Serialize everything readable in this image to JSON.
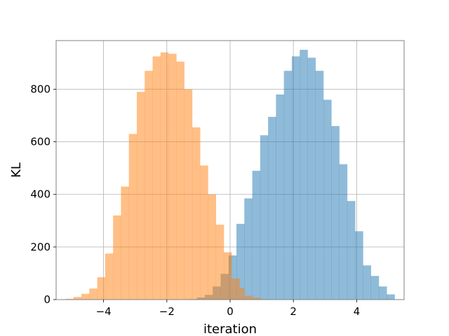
{
  "chart_data": {
    "type": "bar",
    "subtype": "overlapping-histogram",
    "title": "",
    "xlabel": "iteration",
    "ylabel": "KL",
    "xlim": [
      -5.5,
      5.5
    ],
    "ylim": [
      0,
      985
    ],
    "grid": true,
    "x_ticks": [
      -4,
      -2,
      0,
      2,
      4
    ],
    "x_tick_labels": [
      "−4",
      "−2",
      "0",
      "2",
      "4"
    ],
    "y_ticks": [
      0,
      200,
      400,
      600,
      800
    ],
    "y_tick_labels": [
      "0",
      "200",
      "400",
      "600",
      "800"
    ],
    "series": [
      {
        "color": "#1f77b4",
        "opacity": 0.5,
        "bin_edges": [
          -1.3,
          -1.05,
          -0.8,
          -0.55,
          -0.3,
          -0.05,
          0.2,
          0.45,
          0.7,
          0.95,
          1.2,
          1.45,
          1.7,
          1.95,
          2.2,
          2.45,
          2.7,
          2.95,
          3.2,
          3.45,
          3.7,
          3.95,
          4.2,
          4.45,
          4.7,
          4.95,
          5.2
        ],
        "counts": [
          2,
          8,
          18,
          50,
          98,
          168,
          288,
          385,
          490,
          625,
          695,
          780,
          870,
          925,
          950,
          920,
          870,
          760,
          660,
          515,
          375,
          260,
          130,
          90,
          50,
          20
        ]
      },
      {
        "color": "#ff7f0e",
        "opacity": 0.5,
        "bin_edges": [
          -5.2,
          -4.95,
          -4.7,
          -4.45,
          -4.2,
          -3.95,
          -3.7,
          -3.45,
          -3.2,
          -2.95,
          -2.7,
          -2.45,
          -2.2,
          -1.95,
          -1.7,
          -1.45,
          -1.2,
          -0.95,
          -0.7,
          -0.45,
          -0.2,
          0.05,
          0.3,
          0.45,
          0.7,
          0.95,
          1.2
        ],
        "counts": [
          3,
          10,
          22,
          42,
          85,
          175,
          320,
          430,
          630,
          790,
          870,
          925,
          940,
          935,
          905,
          800,
          655,
          510,
          400,
          285,
          180,
          80,
          45,
          15,
          8,
          2
        ]
      }
    ]
  }
}
